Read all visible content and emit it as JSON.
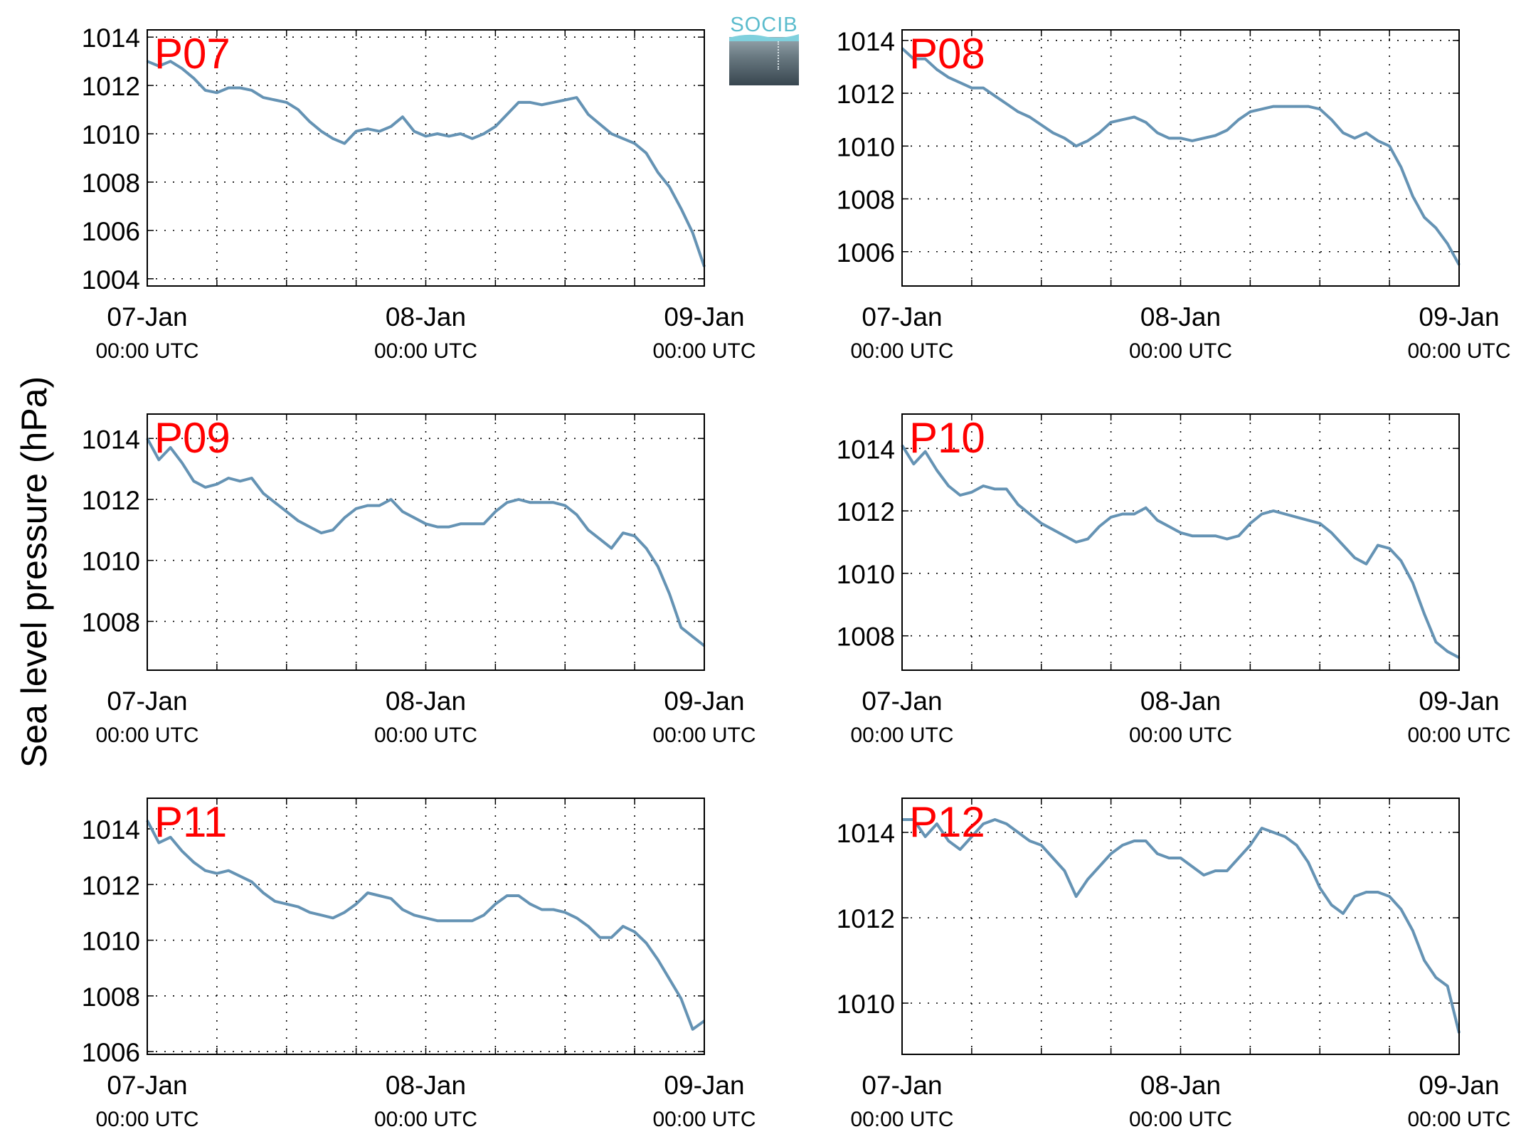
{
  "figure": {
    "ylabel": "Sea level pressure (hPa)",
    "logo_text": "SOCIB",
    "colors": {
      "line": "#6593b4",
      "panel_label": "#ff0000",
      "grid": "#000000"
    },
    "x_tick_dates": [
      "07-Jan",
      "08-Jan",
      "09-Jan"
    ],
    "x_tick_time": "00:00 UTC"
  },
  "chart_data": [
    {
      "type": "line",
      "title": "P07",
      "x_unit": "hours since 07-Jan 00:00 UTC",
      "xlim": [
        0,
        48
      ],
      "ylim": [
        1003.7,
        1014.3
      ],
      "yticks": [
        1004,
        1006,
        1008,
        1010,
        1012,
        1014
      ],
      "grid": true,
      "x": [
        0,
        1,
        2,
        3,
        4,
        5,
        6,
        7,
        8,
        9,
        10,
        11,
        12,
        13,
        14,
        15,
        16,
        17,
        18,
        19,
        20,
        21,
        22,
        23,
        24,
        25,
        26,
        27,
        28,
        29,
        30,
        31,
        32,
        33,
        34,
        35,
        36,
        37,
        38,
        39,
        40,
        41,
        42,
        43,
        44,
        45,
        46,
        47,
        48
      ],
      "values": [
        1013.0,
        1012.8,
        1013.0,
        1012.7,
        1012.3,
        1011.8,
        1011.7,
        1011.9,
        1011.9,
        1011.8,
        1011.5,
        1011.4,
        1011.3,
        1011.0,
        1010.5,
        1010.1,
        1009.8,
        1009.6,
        1010.1,
        1010.2,
        1010.1,
        1010.3,
        1010.7,
        1010.1,
        1009.9,
        1010.0,
        1009.9,
        1010.0,
        1009.8,
        1010.0,
        1010.3,
        1010.8,
        1011.3,
        1011.3,
        1011.2,
        1011.3,
        1011.4,
        1011.5,
        1010.8,
        1010.4,
        1010.0,
        1009.8,
        1009.6,
        1009.2,
        1008.4,
        1007.8,
        1006.9,
        1005.9,
        1004.5
      ]
    },
    {
      "type": "line",
      "title": "P08",
      "x_unit": "hours since 07-Jan 00:00 UTC",
      "xlim": [
        0,
        48
      ],
      "ylim": [
        1004.7,
        1014.4
      ],
      "yticks": [
        1006,
        1008,
        1010,
        1012,
        1014
      ],
      "grid": true,
      "x": [
        0,
        1,
        2,
        3,
        4,
        5,
        6,
        7,
        8,
        9,
        10,
        11,
        12,
        13,
        14,
        15,
        16,
        17,
        18,
        19,
        20,
        21,
        22,
        23,
        24,
        25,
        26,
        27,
        28,
        29,
        30,
        31,
        32,
        33,
        34,
        35,
        36,
        37,
        38,
        39,
        40,
        41,
        42,
        43,
        44,
        45,
        46,
        47,
        48
      ],
      "values": [
        1013.7,
        1013.3,
        1013.3,
        1012.9,
        1012.6,
        1012.4,
        1012.2,
        1012.2,
        1011.9,
        1011.6,
        1011.3,
        1011.1,
        1010.8,
        1010.5,
        1010.3,
        1010.0,
        1010.2,
        1010.5,
        1010.9,
        1011.0,
        1011.1,
        1010.9,
        1010.5,
        1010.3,
        1010.3,
        1010.2,
        1010.3,
        1010.4,
        1010.6,
        1011.0,
        1011.3,
        1011.4,
        1011.5,
        1011.5,
        1011.5,
        1011.5,
        1011.4,
        1011.0,
        1010.5,
        1010.3,
        1010.5,
        1010.2,
        1010.0,
        1009.2,
        1008.1,
        1007.3,
        1006.9,
        1006.3,
        1005.5
      ]
    },
    {
      "type": "line",
      "title": "P09",
      "x_unit": "hours since 07-Jan 00:00 UTC",
      "xlim": [
        0,
        48
      ],
      "ylim": [
        1006.4,
        1014.8
      ],
      "yticks": [
        1008,
        1010,
        1012,
        1014
      ],
      "grid": true,
      "x": [
        0,
        1,
        2,
        3,
        4,
        5,
        6,
        7,
        8,
        9,
        10,
        11,
        12,
        13,
        14,
        15,
        16,
        17,
        18,
        19,
        20,
        21,
        22,
        23,
        24,
        25,
        26,
        27,
        28,
        29,
        30,
        31,
        32,
        33,
        34,
        35,
        36,
        37,
        38,
        39,
        40,
        41,
        42,
        43,
        44,
        45,
        46,
        47,
        48
      ],
      "values": [
        1014.0,
        1013.3,
        1013.7,
        1013.2,
        1012.6,
        1012.4,
        1012.5,
        1012.7,
        1012.6,
        1012.7,
        1012.2,
        1011.9,
        1011.6,
        1011.3,
        1011.1,
        1010.9,
        1011.0,
        1011.4,
        1011.7,
        1011.8,
        1011.8,
        1012.0,
        1011.6,
        1011.4,
        1011.2,
        1011.1,
        1011.1,
        1011.2,
        1011.2,
        1011.2,
        1011.6,
        1011.9,
        1012.0,
        1011.9,
        1011.9,
        1011.9,
        1011.8,
        1011.5,
        1011.0,
        1010.7,
        1010.4,
        1010.9,
        1010.8,
        1010.4,
        1009.8,
        1008.9,
        1007.8,
        1007.5,
        1007.2
      ]
    },
    {
      "type": "line",
      "title": "P10",
      "x_unit": "hours since 07-Jan 00:00 UTC",
      "xlim": [
        0,
        48
      ],
      "ylim": [
        1006.9,
        1015.1
      ],
      "yticks": [
        1008,
        1010,
        1012,
        1014
      ],
      "grid": true,
      "x": [
        0,
        1,
        2,
        3,
        4,
        5,
        6,
        7,
        8,
        9,
        10,
        11,
        12,
        13,
        14,
        15,
        16,
        17,
        18,
        19,
        20,
        21,
        22,
        23,
        24,
        25,
        26,
        27,
        28,
        29,
        30,
        31,
        32,
        33,
        34,
        35,
        36,
        37,
        38,
        39,
        40,
        41,
        42,
        43,
        44,
        45,
        46,
        47,
        48
      ],
      "values": [
        1014.1,
        1013.5,
        1013.9,
        1013.3,
        1012.8,
        1012.5,
        1012.6,
        1012.8,
        1012.7,
        1012.7,
        1012.2,
        1011.9,
        1011.6,
        1011.4,
        1011.2,
        1011.0,
        1011.1,
        1011.5,
        1011.8,
        1011.9,
        1011.9,
        1012.1,
        1011.7,
        1011.5,
        1011.3,
        1011.2,
        1011.2,
        1011.2,
        1011.1,
        1011.2,
        1011.6,
        1011.9,
        1012.0,
        1011.9,
        1011.8,
        1011.7,
        1011.6,
        1011.3,
        1010.9,
        1010.5,
        1010.3,
        1010.9,
        1010.8,
        1010.4,
        1009.7,
        1008.7,
        1007.8,
        1007.5,
        1007.3
      ]
    },
    {
      "type": "line",
      "title": "P11",
      "x_unit": "hours since 07-Jan 00:00 UTC",
      "xlim": [
        0,
        48
      ],
      "ylim": [
        1005.9,
        1015.1
      ],
      "yticks": [
        1006,
        1008,
        1010,
        1012,
        1014
      ],
      "grid": true,
      "x": [
        0,
        1,
        2,
        3,
        4,
        5,
        6,
        7,
        8,
        9,
        10,
        11,
        12,
        13,
        14,
        15,
        16,
        17,
        18,
        19,
        20,
        21,
        22,
        23,
        24,
        25,
        26,
        27,
        28,
        29,
        30,
        31,
        32,
        33,
        34,
        35,
        36,
        37,
        38,
        39,
        40,
        41,
        42,
        43,
        44,
        45,
        46,
        47,
        48
      ],
      "values": [
        1014.3,
        1013.5,
        1013.7,
        1013.2,
        1012.8,
        1012.5,
        1012.4,
        1012.5,
        1012.3,
        1012.1,
        1011.7,
        1011.4,
        1011.3,
        1011.2,
        1011.0,
        1010.9,
        1010.8,
        1011.0,
        1011.3,
        1011.7,
        1011.6,
        1011.5,
        1011.1,
        1010.9,
        1010.8,
        1010.7,
        1010.7,
        1010.7,
        1010.7,
        1010.9,
        1011.3,
        1011.6,
        1011.6,
        1011.3,
        1011.1,
        1011.1,
        1011.0,
        1010.8,
        1010.5,
        1010.1,
        1010.1,
        1010.5,
        1010.3,
        1009.9,
        1009.3,
        1008.6,
        1007.9,
        1006.8,
        1007.1
      ]
    },
    {
      "type": "line",
      "title": "P12",
      "x_unit": "hours since 07-Jan 00:00 UTC",
      "xlim": [
        0,
        48
      ],
      "ylim": [
        1008.8,
        1014.8
      ],
      "yticks": [
        1010,
        1012,
        1014
      ],
      "grid": true,
      "x": [
        0,
        1,
        2,
        3,
        4,
        5,
        6,
        7,
        8,
        9,
        10,
        11,
        12,
        13,
        14,
        15,
        16,
        17,
        18,
        19,
        20,
        21,
        22,
        23,
        24,
        25,
        26,
        27,
        28,
        29,
        30,
        31,
        32,
        33,
        34,
        35,
        36,
        37,
        38,
        39,
        40,
        41,
        42,
        43,
        44,
        45,
        46,
        47,
        48
      ],
      "values": [
        1014.3,
        1014.3,
        1013.9,
        1014.2,
        1013.8,
        1013.6,
        1013.9,
        1014.2,
        1014.3,
        1014.2,
        1014.0,
        1013.8,
        1013.7,
        1013.4,
        1013.1,
        1012.5,
        1012.9,
        1013.2,
        1013.5,
        1013.7,
        1013.8,
        1013.8,
        1013.5,
        1013.4,
        1013.4,
        1013.2,
        1013.0,
        1013.1,
        1013.1,
        1013.4,
        1013.7,
        1014.1,
        1014.0,
        1013.9,
        1013.7,
        1013.3,
        1012.7,
        1012.3,
        1012.1,
        1012.5,
        1012.6,
        1012.6,
        1012.5,
        1012.2,
        1011.7,
        1011.0,
        1010.6,
        1010.4,
        1009.3
      ]
    }
  ]
}
